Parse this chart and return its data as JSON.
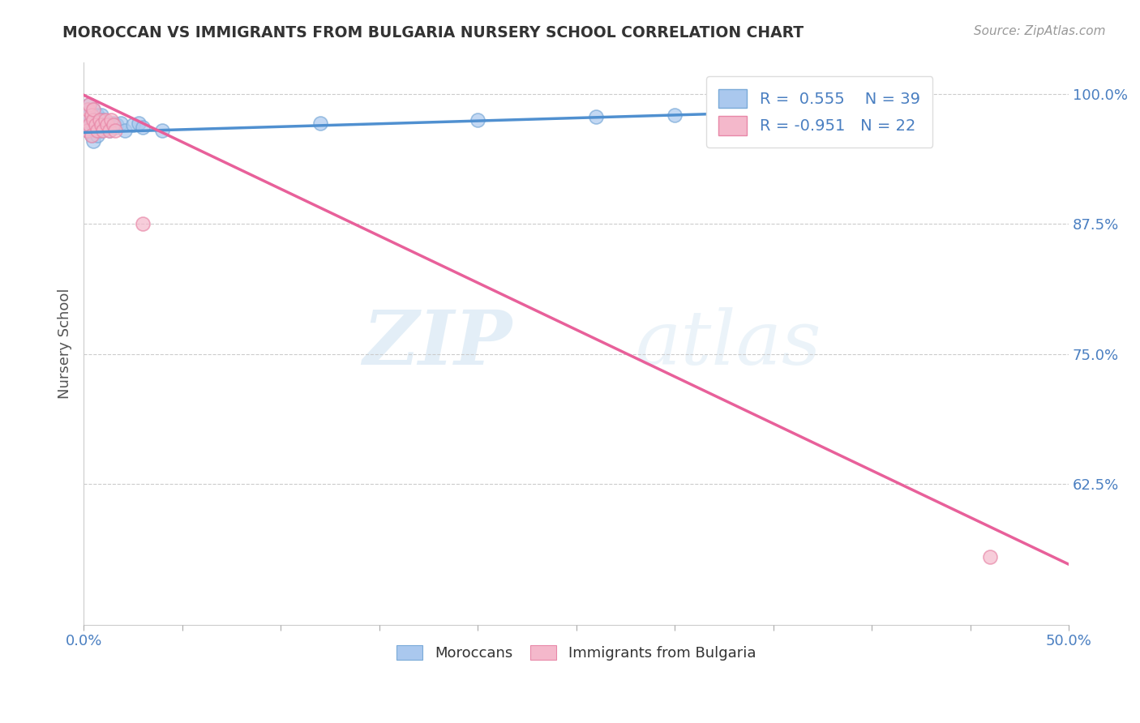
{
  "title": "MOROCCAN VS IMMIGRANTS FROM BULGARIA NURSERY SCHOOL CORRELATION CHART",
  "source": "Source: ZipAtlas.com",
  "ylabel": "Nursery School",
  "xlim": [
    0.0,
    0.5
  ],
  "ylim": [
    0.49,
    1.03
  ],
  "xticks": [
    0.0,
    0.05,
    0.1,
    0.15,
    0.2,
    0.25,
    0.3,
    0.35,
    0.4,
    0.45,
    0.5
  ],
  "xticklabels": [
    "0.0%",
    "",
    "",
    "",
    "",
    "",
    "",
    "",
    "",
    "",
    "50.0%"
  ],
  "ytick_positions": [
    0.625,
    0.75,
    0.875,
    1.0
  ],
  "ytick_labels": [
    "62.5%",
    "75.0%",
    "87.5%",
    "100.0%"
  ],
  "blue_scatter_x": [
    0.001,
    0.002,
    0.002,
    0.003,
    0.003,
    0.003,
    0.004,
    0.004,
    0.005,
    0.005,
    0.005,
    0.006,
    0.006,
    0.007,
    0.007,
    0.008,
    0.008,
    0.009,
    0.009,
    0.01,
    0.01,
    0.011,
    0.012,
    0.013,
    0.014,
    0.015,
    0.016,
    0.017,
    0.019,
    0.021,
    0.025,
    0.028,
    0.03,
    0.04,
    0.12,
    0.2,
    0.26,
    0.3,
    0.33
  ],
  "blue_scatter_y": [
    0.975,
    0.965,
    0.985,
    0.97,
    0.98,
    0.99,
    0.96,
    0.975,
    0.955,
    0.97,
    0.985,
    0.965,
    0.975,
    0.96,
    0.98,
    0.97,
    0.975,
    0.965,
    0.98,
    0.97,
    0.975,
    0.968,
    0.972,
    0.965,
    0.97,
    0.972,
    0.968,
    0.97,
    0.972,
    0.965,
    0.97,
    0.972,
    0.968,
    0.965,
    0.972,
    0.975,
    0.978,
    0.98,
    0.982
  ],
  "blue_line_x": [
    0.0,
    0.34
  ],
  "blue_line_y": [
    0.963,
    0.982
  ],
  "blue_color": "#aac8ee",
  "blue_edge_color": "#7aaad8",
  "blue_line_color": "#5090d0",
  "pink_scatter_x": [
    0.001,
    0.002,
    0.002,
    0.003,
    0.003,
    0.004,
    0.004,
    0.005,
    0.005,
    0.006,
    0.007,
    0.008,
    0.009,
    0.01,
    0.011,
    0.012,
    0.013,
    0.014,
    0.015,
    0.016,
    0.03,
    0.46
  ],
  "pink_scatter_y": [
    0.975,
    0.965,
    0.985,
    0.97,
    0.99,
    0.96,
    0.98,
    0.975,
    0.985,
    0.97,
    0.965,
    0.975,
    0.97,
    0.965,
    0.975,
    0.97,
    0.965,
    0.975,
    0.97,
    0.965,
    0.875,
    0.555
  ],
  "pink_line_x": [
    0.0,
    0.5
  ],
  "pink_line_y": [
    0.999,
    0.548
  ],
  "pink_color": "#f4b8cb",
  "pink_edge_color": "#e888a8",
  "pink_line_color": "#e8609a",
  "legend_blue_r": "R =  0.555",
  "legend_blue_n": "N = 39",
  "legend_pink_r": "R = -0.951",
  "legend_pink_n": "N = 22",
  "watermark_zip": "ZIP",
  "watermark_atlas": "atlas",
  "background_color": "#ffffff",
  "grid_color": "#cccccc",
  "title_color": "#333333",
  "axis_label_color": "#555555",
  "tick_label_color": "#4a7fc1",
  "legend_text_color": "#4a7fc1",
  "source_color": "#999999",
  "bottom_legend_color": "#333333"
}
